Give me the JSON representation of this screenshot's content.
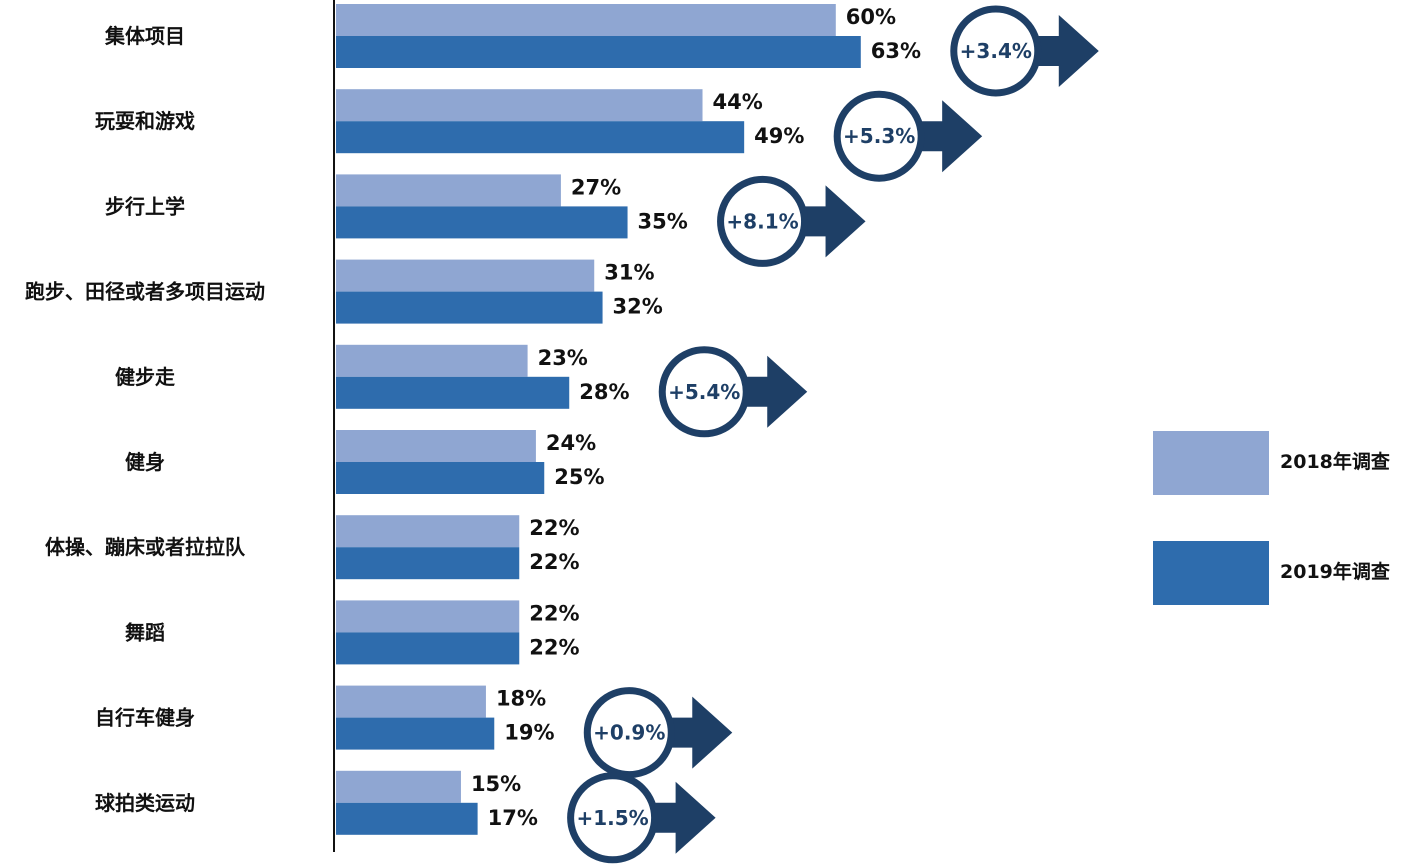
{
  "chart_data": {
    "type": "bar",
    "orientation": "horizontal",
    "categories": [
      "集体项目",
      "玩耍和游戏",
      "步行上学",
      "跑步、田径或者多项目运动",
      "健步走",
      "健身",
      "体操、蹦床或者拉拉队",
      "舞蹈",
      "自行车健身",
      "球拍类运动"
    ],
    "series": [
      {
        "name": "2018年调查",
        "color": "#8fa6d2",
        "values": [
          60,
          44,
          27,
          31,
          23,
          24,
          22,
          22,
          18,
          15
        ],
        "labels": [
          "60%",
          "44%",
          "27%",
          "31%",
          "23%",
          "24%",
          "22%",
          "22%",
          "18%",
          "15%"
        ]
      },
      {
        "name": "2019年调查",
        "color": "#2e6cad",
        "values": [
          63,
          49,
          35,
          32,
          28,
          25,
          22,
          22,
          19,
          17
        ],
        "labels": [
          "63%",
          "49%",
          "35%",
          "32%",
          "28%",
          "25%",
          "22%",
          "22%",
          "19%",
          "17%"
        ]
      }
    ],
    "changes": [
      {
        "category": "集体项目",
        "label": "+3.4%"
      },
      {
        "category": "玩耍和游戏",
        "label": "+5.3%"
      },
      {
        "category": "步行上学",
        "label": "+8.1%"
      },
      {
        "category": "健步走",
        "label": "+5.4%"
      },
      {
        "category": "自行车健身",
        "label": "+0.9%"
      },
      {
        "category": "球拍类运动",
        "label": "+1.5%"
      }
    ],
    "change_color": "#1e3f66",
    "xlim": [
      0,
      100
    ],
    "legend_position": "right",
    "grid": false
  }
}
